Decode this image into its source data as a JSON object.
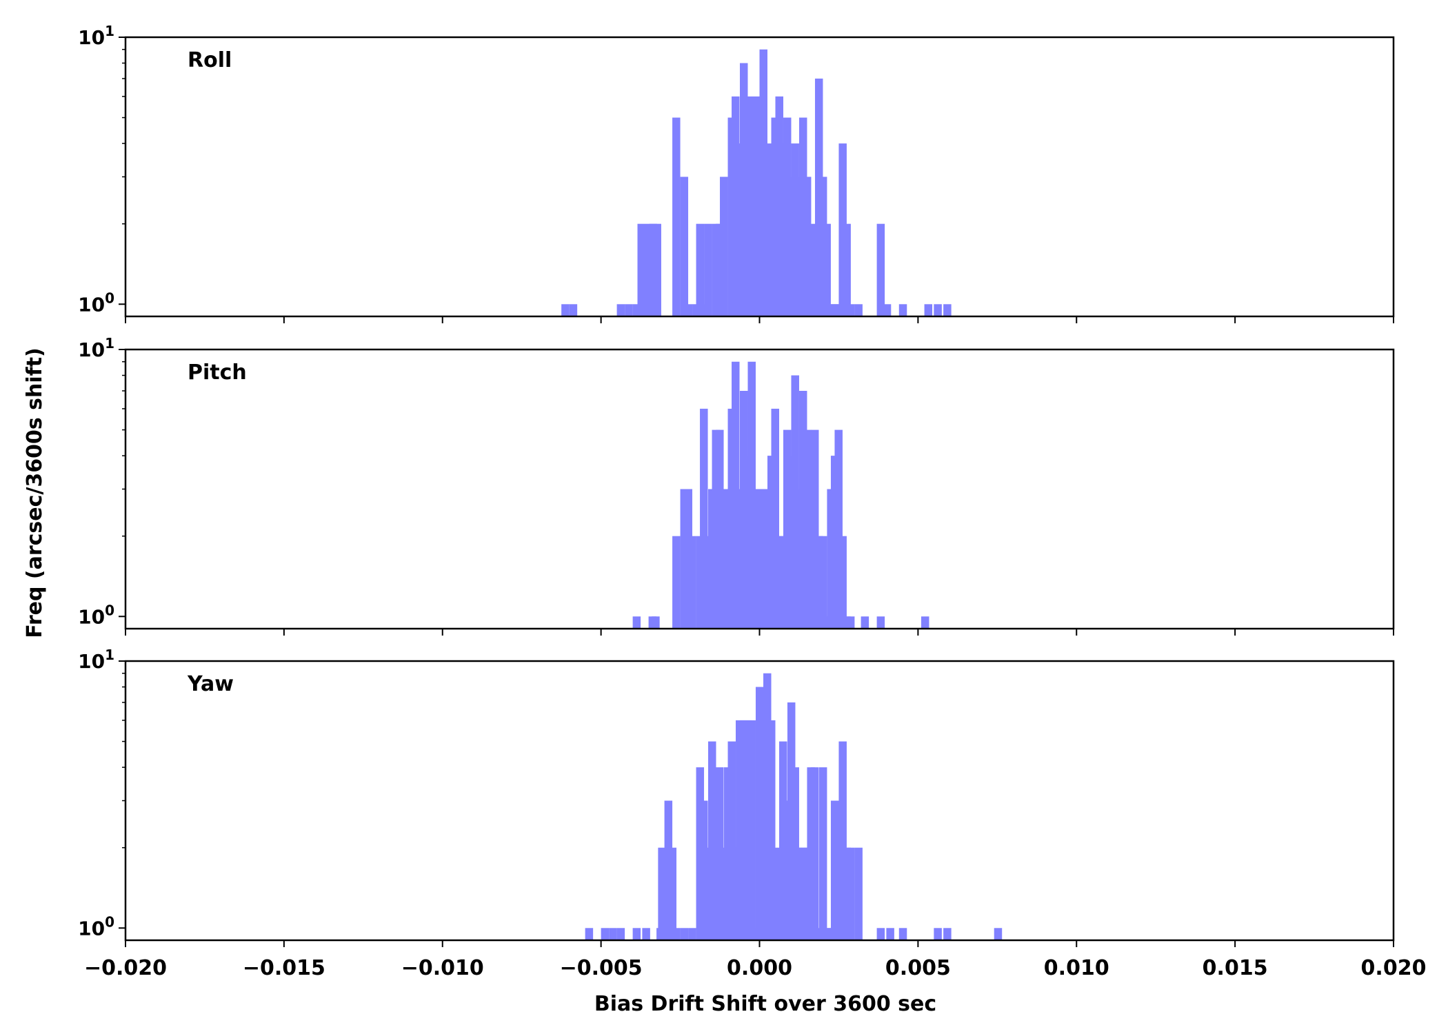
{
  "chart_data": {
    "type": "bar",
    "xlabel": "Bias Drift Shift over 3600 sec",
    "ylabel": "Freq (arcsec/3600s shift)",
    "xlim": [
      -0.02,
      0.02
    ],
    "ylim": [
      0.9,
      10
    ],
    "yscale": "log",
    "xticks": [
      "−0.020",
      "−0.015",
      "−0.010",
      "−0.005",
      "0.000",
      "0.005",
      "0.010",
      "0.015",
      "0.020"
    ],
    "yticks": [
      {
        "base": "10",
        "exp": "0"
      },
      {
        "base": "10",
        "exp": "1"
      }
    ],
    "bar_color": "#8080ff",
    "bin_width": 0.00025,
    "panels": [
      {
        "name": "Roll",
        "bins": [
          [
            -0.00625,
            1
          ],
          [
            -0.006,
            1
          ],
          [
            -0.0045,
            1
          ],
          [
            -0.00425,
            1
          ],
          [
            -0.004,
            1
          ],
          [
            -0.00385,
            2
          ],
          [
            -0.0036,
            2
          ],
          [
            -0.00348,
            2
          ],
          [
            -0.00335,
            2
          ],
          [
            -0.00275,
            5
          ],
          [
            -0.0025,
            3
          ],
          [
            -0.00237,
            1
          ],
          [
            -0.00212,
            1
          ],
          [
            -0.002,
            2
          ],
          [
            -0.00188,
            1
          ],
          [
            -0.00175,
            2
          ],
          [
            -0.0015,
            2
          ],
          [
            -0.00138,
            2
          ],
          [
            -0.00125,
            3
          ],
          [
            -0.001,
            5
          ],
          [
            -0.00088,
            6
          ],
          [
            -0.00075,
            4
          ],
          [
            -0.00062,
            8
          ],
          [
            -0.0005,
            6
          ],
          [
            -0.00037,
            5
          ],
          [
            -0.00025,
            6
          ],
          [
            -0.00012,
            1
          ],
          [
            0.0,
            9
          ],
          [
            0.00012,
            2
          ],
          [
            0.00025,
            4
          ],
          [
            0.00037,
            5
          ],
          [
            0.0005,
            6
          ],
          [
            0.00062,
            4
          ],
          [
            0.00075,
            5
          ],
          [
            0.00088,
            3
          ],
          [
            0.001,
            4
          ],
          [
            0.00112,
            3
          ],
          [
            0.00125,
            5
          ],
          [
            0.00138,
            3
          ],
          [
            0.0015,
            1
          ],
          [
            0.00162,
            2
          ],
          [
            0.00175,
            7
          ],
          [
            0.00188,
            3
          ],
          [
            0.002,
            2
          ],
          [
            0.00213,
            1
          ],
          [
            0.00225,
            1
          ],
          [
            0.00237,
            1
          ],
          [
            0.0025,
            4
          ],
          [
            0.00263,
            2
          ],
          [
            0.00275,
            1
          ],
          [
            0.003,
            1
          ],
          [
            0.0037,
            2
          ],
          [
            0.0039,
            1
          ],
          [
            0.0044,
            1
          ],
          [
            0.0052,
            1
          ],
          [
            0.0055,
            1
          ],
          [
            0.0058,
            1
          ]
        ]
      },
      {
        "name": "Pitch",
        "bins": [
          [
            -0.004,
            1
          ],
          [
            -0.0035,
            1
          ],
          [
            -0.0034,
            1
          ],
          [
            -0.00275,
            2
          ],
          [
            -0.0025,
            3
          ],
          [
            -0.00237,
            3
          ],
          [
            -0.00225,
            2
          ],
          [
            -0.002,
            2
          ],
          [
            -0.00188,
            6
          ],
          [
            -0.00175,
            2
          ],
          [
            -0.00162,
            3
          ],
          [
            -0.0015,
            5
          ],
          [
            -0.00138,
            5
          ],
          [
            -0.00125,
            3
          ],
          [
            -0.00112,
            3
          ],
          [
            -0.001,
            6
          ],
          [
            -0.00088,
            9
          ],
          [
            -0.00075,
            3
          ],
          [
            -0.00062,
            7
          ],
          [
            -0.0005,
            4
          ],
          [
            -0.00037,
            9
          ],
          [
            -0.00025,
            3
          ],
          [
            -0.00012,
            3
          ],
          [
            0.0,
            1
          ],
          [
            0.00012,
            3
          ],
          [
            0.00025,
            4
          ],
          [
            0.00037,
            6
          ],
          [
            0.0005,
            2
          ],
          [
            0.00062,
            2
          ],
          [
            0.00075,
            5
          ],
          [
            0.00088,
            4
          ],
          [
            0.001,
            8
          ],
          [
            0.00112,
            3
          ],
          [
            0.00125,
            7
          ],
          [
            0.00138,
            5
          ],
          [
            0.0015,
            3
          ],
          [
            0.00162,
            5
          ],
          [
            0.00175,
            2
          ],
          [
            0.00188,
            2
          ],
          [
            0.002,
            1
          ],
          [
            0.00213,
            3
          ],
          [
            0.00225,
            4
          ],
          [
            0.00237,
            5
          ],
          [
            0.0025,
            2
          ],
          [
            0.00263,
            1
          ],
          [
            0.00275,
            1
          ],
          [
            0.0032,
            1
          ],
          [
            0.0037,
            1
          ],
          [
            0.0051,
            1
          ]
        ]
      },
      {
        "name": "Yaw",
        "bins": [
          [
            -0.0055,
            1
          ],
          [
            -0.005,
            1
          ],
          [
            -0.00475,
            1
          ],
          [
            -0.0045,
            1
          ],
          [
            -0.004,
            1
          ],
          [
            -0.0037,
            1
          ],
          [
            -0.00325,
            1
          ],
          [
            -0.0032,
            2
          ],
          [
            -0.003,
            3
          ],
          [
            -0.00287,
            2
          ],
          [
            -0.00275,
            1
          ],
          [
            -0.0025,
            1
          ],
          [
            -0.00225,
            1
          ],
          [
            -0.002,
            4
          ],
          [
            -0.00188,
            3
          ],
          [
            -0.00175,
            2
          ],
          [
            -0.00162,
            5
          ],
          [
            -0.0015,
            3
          ],
          [
            -0.00138,
            4
          ],
          [
            -0.00125,
            2
          ],
          [
            -0.00112,
            4
          ],
          [
            -0.001,
            5
          ],
          [
            -0.00088,
            2
          ],
          [
            -0.00075,
            6
          ],
          [
            -0.00062,
            6
          ],
          [
            -0.0005,
            6
          ],
          [
            -0.00037,
            6
          ],
          [
            -0.00025,
            1
          ],
          [
            -0.00012,
            8
          ],
          [
            0.0,
            4
          ],
          [
            0.00012,
            9
          ],
          [
            0.00025,
            6
          ],
          [
            0.00037,
            2
          ],
          [
            0.0005,
            1
          ],
          [
            0.00062,
            5
          ],
          [
            0.00075,
            3
          ],
          [
            0.00088,
            7
          ],
          [
            0.001,
            4
          ],
          [
            0.00112,
            2
          ],
          [
            0.00125,
            2
          ],
          [
            0.00138,
            2
          ],
          [
            0.0015,
            4
          ],
          [
            0.00162,
            4
          ],
          [
            0.00175,
            1
          ],
          [
            0.00188,
            4
          ],
          [
            0.002,
            1
          ],
          [
            0.00213,
            1
          ],
          [
            0.00225,
            3
          ],
          [
            0.00237,
            3
          ],
          [
            0.0025,
            5
          ],
          [
            0.00263,
            2
          ],
          [
            0.00275,
            2
          ],
          [
            0.003,
            2
          ],
          [
            0.0037,
            1
          ],
          [
            0.004,
            1
          ],
          [
            0.0044,
            1
          ],
          [
            0.0055,
            1
          ],
          [
            0.0058,
            1
          ],
          [
            0.0074,
            1
          ]
        ]
      }
    ]
  }
}
